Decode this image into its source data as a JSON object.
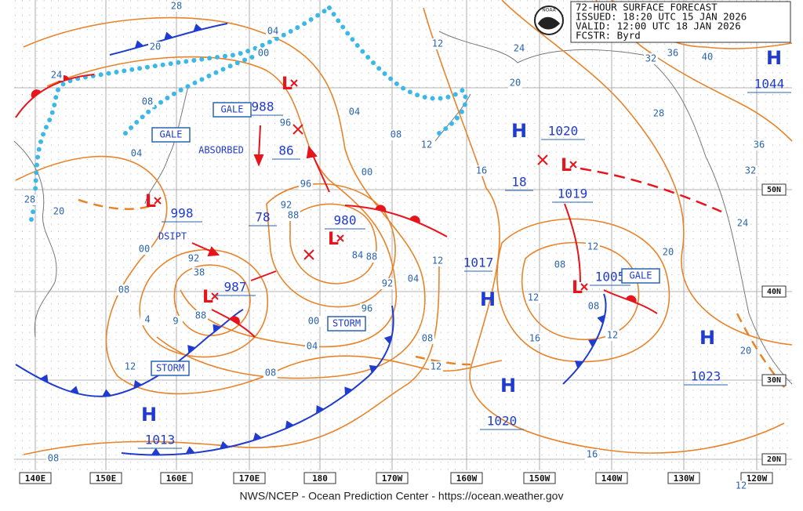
{
  "header": {
    "lines": [
      "72-HOUR SURFACE FORECAST",
      "ISSUED: 18:20 UTC 15 JAN 2026",
      "VALID:  12:00 UTC 18 JAN 2026",
      "FCSTR:  Byrd"
    ],
    "logo": "NOAA"
  },
  "highs": [
    {
      "symbol": "H",
      "pressure": "1020"
    },
    {
      "symbol": "H",
      "pressure": "1044"
    },
    {
      "symbol": "H",
      "pressure": "1023"
    },
    {
      "symbol": "H",
      "pressure": "1020"
    },
    {
      "symbol": "H",
      "pressure": "1013"
    },
    {
      "symbol": "H"
    }
  ],
  "lows": [
    {
      "symbol": "L",
      "pressure": "998"
    },
    {
      "symbol": "L",
      "pressure": "987"
    },
    {
      "symbol": "L",
      "pressure": "980"
    },
    {
      "symbol": "L",
      "pressure": "988"
    },
    {
      "symbol": "L",
      "pressure": "1019"
    },
    {
      "symbol": "L",
      "pressure": "1005"
    }
  ],
  "other_pressures": [
    "86",
    "78",
    "18",
    "1017"
  ],
  "boxes": [
    "GALE",
    "GALE",
    "STORM",
    "STORM",
    "GALE"
  ],
  "notes": [
    "ABSORBED",
    "DSIPT"
  ],
  "isobar_labels": [
    "28",
    "20",
    "24",
    "04",
    "00",
    "12",
    "24",
    "20",
    "32",
    "36",
    "40",
    "04",
    "08",
    "12",
    "16",
    "28",
    "36",
    "32",
    "24",
    "20",
    "96",
    "96",
    "00",
    "92",
    "88",
    "84",
    "88",
    "92",
    "04",
    "96",
    "00",
    "04",
    "08",
    "08",
    "12",
    "12",
    "12",
    "16",
    "08",
    "12",
    "08",
    "12",
    "20",
    "16",
    "12",
    "08",
    "12",
    "08",
    "00",
    "04",
    "08",
    "28",
    "20",
    "92",
    "38",
    "88",
    "9",
    "4"
  ],
  "longitudes": [
    "140E",
    "150E",
    "160E",
    "170E",
    "180",
    "170W",
    "160W",
    "150W",
    "140W",
    "130W",
    "120W"
  ],
  "latitudes": [
    "50N",
    "40N",
    "30N",
    "20N"
  ],
  "footer": "NWS/NCEP - Ocean Prediction Center - https://ocean.weather.gov"
}
